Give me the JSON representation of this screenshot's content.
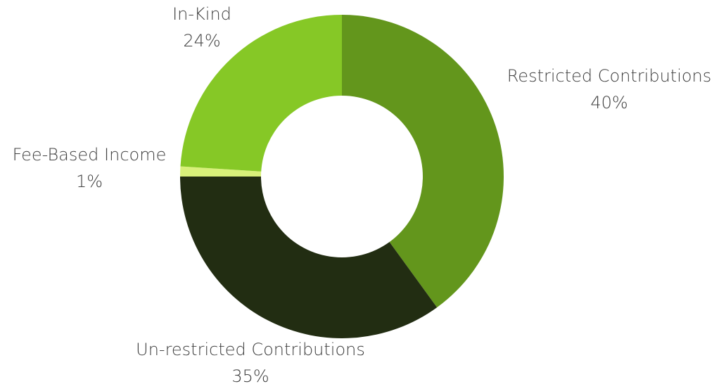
{
  "chart_data": {
    "type": "pie",
    "variant": "donut",
    "title": "",
    "slices": [
      {
        "label": "Restricted Contributions",
        "percent_label": "40%",
        "value": 40,
        "color": "#63961c"
      },
      {
        "label": "Un-restricted Contributions",
        "percent_label": "35%",
        "value": 35,
        "color": "#222d12"
      },
      {
        "label": "Fee-Based Income",
        "percent_label": "1%",
        "value": 1,
        "color": "#d8f07a"
      },
      {
        "label": "In-Kind",
        "percent_label": "24%",
        "value": 24,
        "color": "#86c826"
      }
    ],
    "legend": "none",
    "labels": "outside"
  }
}
